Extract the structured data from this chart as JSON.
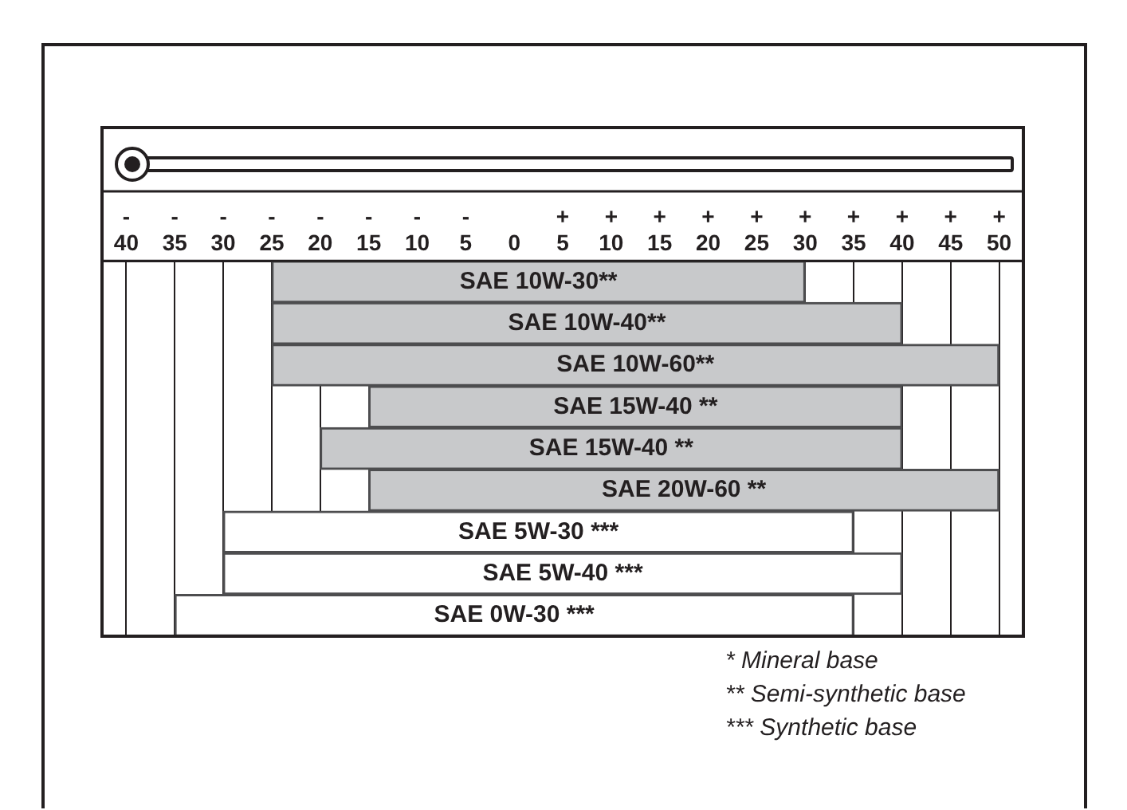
{
  "chart_data": {
    "type": "bar",
    "orientation": "horizontal",
    "categories": [
      "SAE 10W-30**",
      "SAE 10W-40**",
      "SAE 10W-60**",
      "SAE 15W-40 **",
      "SAE 15W-40 **",
      "SAE 20W-60 **",
      "SAE 5W-30 ***",
      "SAE 5W-40 ***",
      "SAE 0W-30 ***"
    ],
    "base": [
      -25,
      -25,
      -25,
      -15,
      -20,
      -15,
      -30,
      -30,
      -35
    ],
    "values": [
      55,
      65,
      75,
      55,
      60,
      65,
      65,
      70,
      70
    ],
    "colors": [
      "#c8c9cb",
      "#c8c9cb",
      "#c8c9cb",
      "#c8c9cb",
      "#c8c9cb",
      "#c8c9cb",
      "#ffffff",
      "#ffffff",
      "#ffffff"
    ],
    "xlim": [
      -42.5,
      52.5
    ],
    "xticks": [
      {
        "value": -40,
        "label": "-\n40"
      },
      {
        "value": -35,
        "label": "-\n35"
      },
      {
        "value": -30,
        "label": "-\n30"
      },
      {
        "value": -25,
        "label": "-\n25"
      },
      {
        "value": -20,
        "label": "-\n20"
      },
      {
        "value": -15,
        "label": "-\n15"
      },
      {
        "value": -10,
        "label": "-\n10"
      },
      {
        "value": -5,
        "label": "-\n5"
      },
      0,
      {
        "value": 5,
        "label": "+\n5"
      },
      {
        "value": 10,
        "label": "+\n10"
      },
      {
        "value": 15,
        "label": "+\n15"
      },
      {
        "value": 20,
        "label": "+\n20"
      },
      {
        "value": 25,
        "label": "+\n25"
      },
      {
        "value": 30,
        "label": "+\n30"
      },
      {
        "value": 35,
        "label": "+\n35"
      },
      {
        "value": 40,
        "label": "+\n40"
      },
      {
        "value": 45,
        "label": "+\n45"
      },
      {
        "value": 50,
        "label": "+\n50"
      }
    ],
    "grid": "x",
    "tick_labels": "x",
    "annotations": [
      "* Mineral base",
      "** Semi-synthetic base",
      "*** Synthetic base"
    ]
  }
}
